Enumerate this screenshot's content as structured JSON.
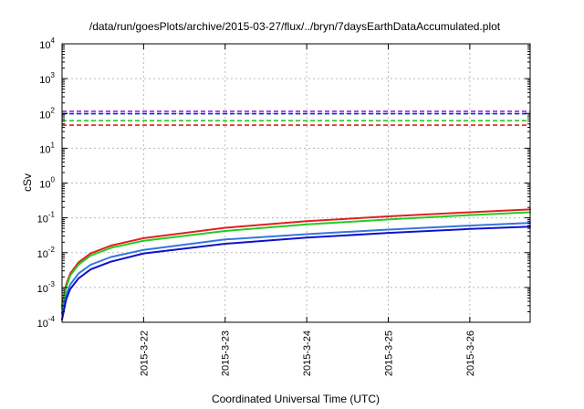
{
  "chart_data": {
    "type": "line",
    "title": "/data/run/goesPlots/archive/2015-03-27/flux/../bryn/7daysEarthDataAccumulated.plot",
    "xlabel": "Coordinated Universal Time (UTC)",
    "ylabel": "cSv",
    "yscale": "log",
    "ylim": [
      0.0001,
      10000
    ],
    "xlim": [
      0,
      5.74
    ],
    "grid": true,
    "y_ticks": [
      {
        "value": 0.0001,
        "base": "10",
        "exp": "-4"
      },
      {
        "value": 0.001,
        "base": "10",
        "exp": "-3"
      },
      {
        "value": 0.01,
        "base": "10",
        "exp": "-2"
      },
      {
        "value": 0.1,
        "base": "10",
        "exp": "-1"
      },
      {
        "value": 1,
        "base": "10",
        "exp": "0"
      },
      {
        "value": 10,
        "base": "10",
        "exp": "1"
      },
      {
        "value": 100,
        "base": "10",
        "exp": "2"
      },
      {
        "value": 1000,
        "base": "10",
        "exp": "3"
      },
      {
        "value": 10000,
        "base": "10",
        "exp": "4"
      }
    ],
    "x_ticks": [
      {
        "value": 1,
        "label": "2015-3-22"
      },
      {
        "value": 2,
        "label": "2015-3-23"
      },
      {
        "value": 3,
        "label": "2015-3-24"
      },
      {
        "value": 4,
        "label": "2015-3-25"
      },
      {
        "value": 5,
        "label": "2015-3-26"
      }
    ],
    "thresholds": [
      {
        "value": 115,
        "color": "#8a2be2"
      },
      {
        "value": 98,
        "color": "#2020d0"
      },
      {
        "value": 62,
        "color": "#22cc22"
      },
      {
        "value": 46,
        "color": "#e02020"
      }
    ],
    "series": [
      {
        "color": "#e02020",
        "x": [
          0.0,
          0.05,
          0.1,
          0.2,
          0.35,
          0.6,
          1.0,
          2.0,
          3.0,
          4.0,
          5.0,
          5.74
        ],
        "values": [
          0.0003,
          0.0012,
          0.0025,
          0.0052,
          0.0095,
          0.016,
          0.026,
          0.052,
          0.08,
          0.11,
          0.145,
          0.175
        ]
      },
      {
        "color": "#22cc22",
        "x": [
          0.0,
          0.05,
          0.1,
          0.2,
          0.35,
          0.6,
          1.0,
          2.0,
          3.0,
          4.0,
          5.0,
          5.74
        ],
        "values": [
          0.00025,
          0.001,
          0.0022,
          0.0045,
          0.0082,
          0.0138,
          0.022,
          0.042,
          0.065,
          0.09,
          0.12,
          0.145
        ]
      },
      {
        "color": "#3377dd",
        "x": [
          0.0,
          0.05,
          0.1,
          0.2,
          0.35,
          0.6,
          1.0,
          2.0,
          3.0,
          4.0,
          5.0,
          5.74
        ],
        "values": [
          0.00018,
          0.0006,
          0.0012,
          0.0025,
          0.0045,
          0.0075,
          0.012,
          0.024,
          0.034,
          0.046,
          0.06,
          0.072
        ]
      },
      {
        "color": "#1010cc",
        "x": [
          0.0,
          0.05,
          0.1,
          0.2,
          0.35,
          0.6,
          1.0,
          2.0,
          3.0,
          4.0,
          5.0,
          5.74
        ],
        "values": [
          0.00012,
          0.00045,
          0.0009,
          0.0018,
          0.0033,
          0.0055,
          0.0095,
          0.018,
          0.027,
          0.037,
          0.048,
          0.056
        ]
      }
    ]
  }
}
